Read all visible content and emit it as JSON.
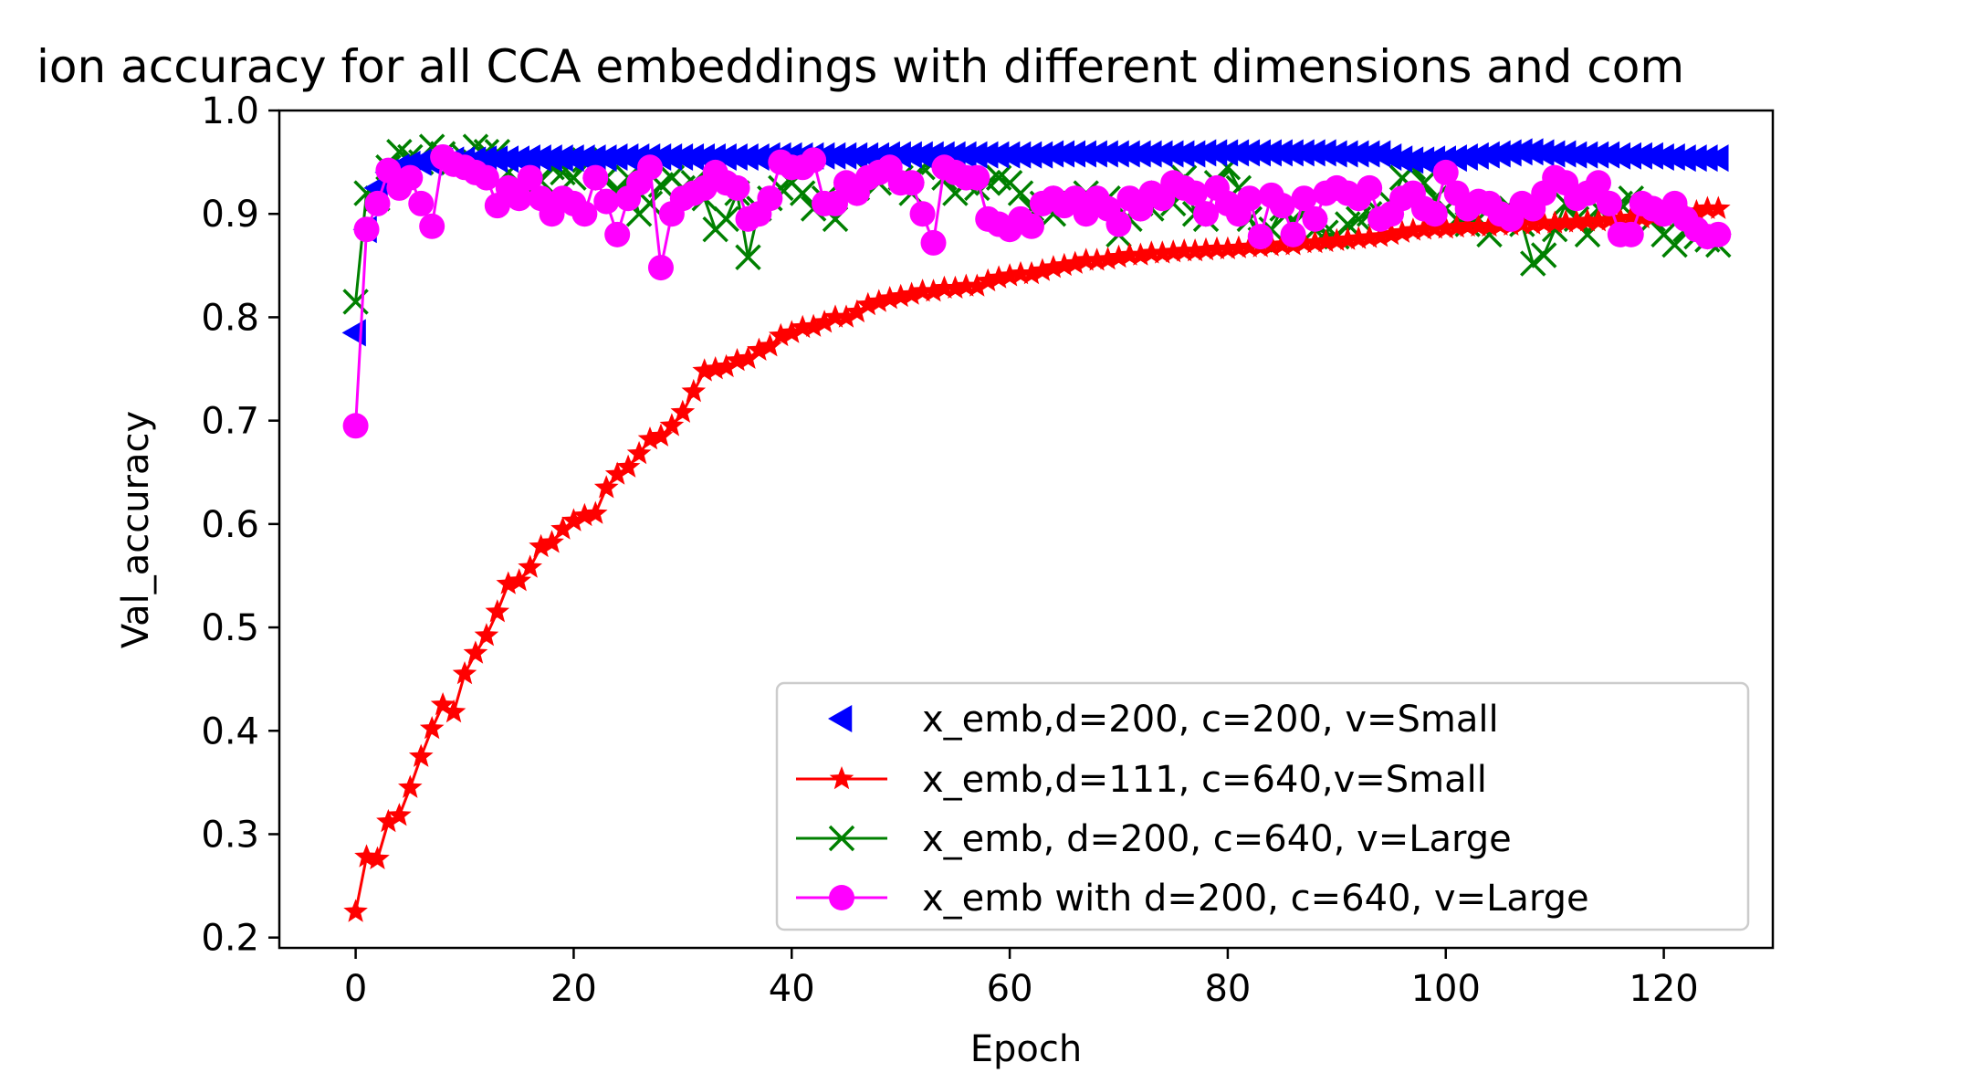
{
  "chart_data": {
    "type": "line",
    "title": "ion accuracy for all CCA embeddings with different dimensions and com",
    "xlabel": "Epoch",
    "ylabel": "Val_accuracy",
    "xlim": [
      -7,
      130
    ],
    "ylim": [
      0.19,
      1.0
    ],
    "xticks": [
      0,
      20,
      40,
      60,
      80,
      100,
      120
    ],
    "yticks": [
      0.2,
      0.3,
      0.4,
      0.5,
      0.6,
      0.7,
      0.8,
      0.9,
      1.0
    ],
    "x_tick_labels": [
      "0",
      "20",
      "40",
      "60",
      "80",
      "100",
      "120"
    ],
    "y_tick_labels": [
      "0.2",
      "0.3",
      "0.4",
      "0.5",
      "0.6",
      "0.7",
      "0.8",
      "0.9",
      "1.0"
    ],
    "grid": false,
    "legend_position": "lower-right",
    "series": [
      {
        "name": "x_emb,d=200, c=200, v=Small",
        "color": "#0000ff",
        "marker": "triangle-left",
        "line": false,
        "x_start": 0,
        "values": [
          0.785,
          0.885,
          0.925,
          0.94,
          0.945,
          0.948,
          0.95,
          0.95,
          0.951,
          0.952,
          0.952,
          0.952,
          0.953,
          0.953,
          0.953,
          0.953,
          0.954,
          0.954,
          0.954,
          0.954,
          0.954,
          0.954,
          0.954,
          0.954,
          0.955,
          0.955,
          0.955,
          0.955,
          0.955,
          0.955,
          0.955,
          0.955,
          0.955,
          0.955,
          0.955,
          0.955,
          0.955,
          0.955,
          0.956,
          0.956,
          0.956,
          0.956,
          0.956,
          0.956,
          0.956,
          0.956,
          0.956,
          0.956,
          0.956,
          0.957,
          0.957,
          0.957,
          0.957,
          0.957,
          0.957,
          0.957,
          0.957,
          0.957,
          0.957,
          0.957,
          0.957,
          0.957,
          0.957,
          0.957,
          0.958,
          0.958,
          0.958,
          0.958,
          0.958,
          0.958,
          0.958,
          0.958,
          0.958,
          0.958,
          0.958,
          0.958,
          0.958,
          0.958,
          0.959,
          0.959,
          0.959,
          0.959,
          0.959,
          0.959,
          0.959,
          0.959,
          0.959,
          0.959,
          0.959,
          0.959,
          0.958,
          0.958,
          0.958,
          0.958,
          0.958,
          0.955,
          0.953,
          0.952,
          0.952,
          0.953,
          0.953,
          0.954,
          0.955,
          0.956,
          0.957,
          0.958,
          0.959,
          0.96,
          0.96,
          0.959,
          0.958,
          0.958,
          0.957,
          0.957,
          0.957,
          0.957,
          0.956,
          0.956,
          0.956,
          0.956,
          0.955,
          0.955,
          0.954,
          0.954,
          0.954,
          0.954
        ]
      },
      {
        "name": "x_emb,d=111, c=640,v=Small",
        "color": "#ff0000",
        "marker": "star",
        "line": true,
        "x_start": 0,
        "values": [
          0.225,
          0.278,
          0.276,
          0.312,
          0.318,
          0.345,
          0.375,
          0.402,
          0.425,
          0.418,
          0.455,
          0.475,
          0.492,
          0.515,
          0.542,
          0.545,
          0.558,
          0.578,
          0.582,
          0.595,
          0.603,
          0.608,
          0.61,
          0.635,
          0.648,
          0.655,
          0.668,
          0.682,
          0.685,
          0.695,
          0.708,
          0.728,
          0.748,
          0.75,
          0.752,
          0.758,
          0.76,
          0.768,
          0.772,
          0.782,
          0.785,
          0.79,
          0.791,
          0.795,
          0.8,
          0.8,
          0.805,
          0.812,
          0.815,
          0.818,
          0.82,
          0.822,
          0.825,
          0.825,
          0.828,
          0.828,
          0.83,
          0.83,
          0.835,
          0.838,
          0.84,
          0.842,
          0.842,
          0.845,
          0.848,
          0.85,
          0.852,
          0.855,
          0.855,
          0.856,
          0.858,
          0.86,
          0.86,
          0.862,
          0.862,
          0.863,
          0.864,
          0.864,
          0.865,
          0.866,
          0.866,
          0.867,
          0.868,
          0.868,
          0.869,
          0.87,
          0.87,
          0.872,
          0.872,
          0.873,
          0.874,
          0.875,
          0.876,
          0.877,
          0.878,
          0.88,
          0.882,
          0.884,
          0.885,
          0.886,
          0.886,
          0.887,
          0.888,
          0.888,
          0.888,
          0.889,
          0.889,
          0.89,
          0.89,
          0.891,
          0.891,
          0.892,
          0.892,
          0.893,
          0.893,
          0.894,
          0.895,
          0.896,
          0.896,
          0.897,
          0.898,
          0.899,
          0.9,
          0.902,
          0.905,
          0.905
        ]
      },
      {
        "name": "x_emb, d=200, c=640, v=Large",
        "color": "#008000",
        "marker": "x",
        "line": true,
        "x_start": 0,
        "values": [
          0.815,
          0.92,
          0.915,
          0.945,
          0.96,
          0.955,
          0.95,
          0.965,
          0.958,
          0.95,
          0.955,
          0.965,
          0.96,
          0.96,
          0.94,
          0.93,
          0.925,
          0.932,
          0.945,
          0.94,
          0.935,
          0.952,
          0.945,
          0.935,
          0.92,
          0.935,
          0.9,
          0.91,
          0.928,
          0.935,
          0.925,
          0.93,
          0.915,
          0.885,
          0.895,
          0.92,
          0.858,
          0.905,
          0.915,
          0.925,
          0.93,
          0.92,
          0.905,
          0.915,
          0.895,
          0.92,
          0.925,
          0.94,
          0.93,
          0.95,
          0.935,
          0.92,
          0.945,
          0.95,
          0.935,
          0.92,
          0.93,
          0.925,
          0.93,
          0.935,
          0.93,
          0.92,
          0.905,
          0.91,
          0.9,
          0.915,
          0.91,
          0.92,
          0.905,
          0.915,
          0.88,
          0.895,
          0.91,
          0.905,
          0.92,
          0.91,
          0.935,
          0.9,
          0.895,
          0.93,
          0.945,
          0.925,
          0.895,
          0.875,
          0.885,
          0.905,
          0.89,
          0.905,
          0.885,
          0.882,
          0.878,
          0.89,
          0.895,
          0.9,
          0.9,
          0.91,
          0.935,
          0.945,
          0.93,
          0.915,
          0.905,
          0.895,
          0.89,
          0.895,
          0.88,
          0.9,
          0.905,
          0.89,
          0.852,
          0.86,
          0.885,
          0.91,
          0.895,
          0.88,
          0.905,
          0.9,
          0.91,
          0.915,
          0.905,
          0.895,
          0.88,
          0.87,
          0.885,
          0.878,
          0.875,
          0.87
        ]
      },
      {
        "name": "x_emb with d=200, c=640, v=Large",
        "color": "#ff00ff",
        "marker": "circle",
        "line": true,
        "x_start": 0,
        "values": [
          0.695,
          0.885,
          0.91,
          0.942,
          0.925,
          0.935,
          0.91,
          0.888,
          0.955,
          0.948,
          0.945,
          0.94,
          0.935,
          0.908,
          0.925,
          0.915,
          0.935,
          0.915,
          0.9,
          0.915,
          0.91,
          0.9,
          0.935,
          0.912,
          0.88,
          0.915,
          0.93,
          0.945,
          0.848,
          0.9,
          0.915,
          0.92,
          0.925,
          0.94,
          0.93,
          0.925,
          0.895,
          0.9,
          0.915,
          0.95,
          0.945,
          0.945,
          0.952,
          0.91,
          0.91,
          0.93,
          0.92,
          0.935,
          0.94,
          0.945,
          0.93,
          0.93,
          0.9,
          0.872,
          0.945,
          0.94,
          0.935,
          0.935,
          0.895,
          0.89,
          0.885,
          0.895,
          0.888,
          0.91,
          0.915,
          0.908,
          0.915,
          0.9,
          0.915,
          0.905,
          0.89,
          0.915,
          0.905,
          0.92,
          0.915,
          0.93,
          0.925,
          0.92,
          0.9,
          0.925,
          0.91,
          0.9,
          0.915,
          0.878,
          0.918,
          0.908,
          0.88,
          0.915,
          0.895,
          0.92,
          0.925,
          0.92,
          0.915,
          0.925,
          0.895,
          0.9,
          0.915,
          0.92,
          0.905,
          0.9,
          0.94,
          0.92,
          0.905,
          0.912,
          0.91,
          0.9,
          0.895,
          0.91,
          0.905,
          0.92,
          0.935,
          0.93,
          0.915,
          0.92,
          0.93,
          0.91,
          0.88,
          0.88,
          0.91,
          0.905,
          0.9,
          0.91,
          0.895,
          0.885,
          0.878,
          0.88
        ]
      }
    ]
  }
}
